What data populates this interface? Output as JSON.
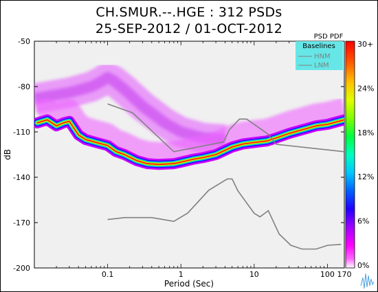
{
  "header": {
    "title_line1": "CH.SMUR.--.HGE : 312 PSDs",
    "title_line2": "25-SEP-2012 / 01-OCT-2012"
  },
  "colors": {
    "plot_background": "#f0f0f0",
    "baseline_line": "#808080",
    "legend_box": "#66e6e6",
    "pdf_scale": [
      "#ff00ff",
      "#cc33ff",
      "#7a00ff",
      "#0000ff",
      "#0080ff",
      "#00d8ff",
      "#00ffb0",
      "#00ff00",
      "#b0ff00",
      "#ffff00",
      "#ffb000",
      "#ff6000",
      "#ff0000"
    ]
  },
  "chart_data": {
    "type": "heatmap",
    "title": "CH.SMUR.--.HGE : 312 PSDs",
    "subtitle": "25-SEP-2012 / 01-OCT-2012",
    "xlabel": "Period (Sec)",
    "ylabel": "dB",
    "x_scale": "log",
    "xlim": [
      0.01,
      170
    ],
    "ylim": [
      -200,
      -50
    ],
    "x_ticks": [
      {
        "value": 0.1,
        "label": "0.1"
      },
      {
        "value": 1,
        "label": "1"
      },
      {
        "value": 10,
        "label": "10"
      },
      {
        "value": 100,
        "label": "100"
      },
      {
        "value": 170,
        "label": "170"
      }
    ],
    "y_ticks": [
      -50,
      -80,
      -110,
      -140,
      -170,
      -200
    ],
    "colorbar": {
      "title": "PSD PDF",
      "ticks": [
        "30+",
        "24%",
        "18%",
        "12%",
        "6%",
        "0%"
      ]
    },
    "legend": {
      "title": "Baselines",
      "placement": "top-right",
      "entries": [
        "HNM",
        "LNM"
      ]
    },
    "baselines": [
      {
        "name": "HNM",
        "x": [
          0.1,
          0.22,
          0.8,
          3.8,
          4.6,
          6.3,
          7.9,
          15.4,
          20,
          354.8
        ],
        "y": [
          -91.5,
          -97.4,
          -123.1,
          -116.7,
          -108.5,
          -101.5,
          -101.5,
          -111.4,
          -118.2,
          -124.8
        ]
      },
      {
        "name": "LNM",
        "x": [
          0.1,
          0.17,
          0.4,
          0.8,
          1.24,
          2.4,
          4.3,
          5,
          6,
          10,
          12,
          15.6,
          21.9,
          31.6,
          45,
          70,
          101,
          154
        ],
        "y": [
          -168,
          -166.7,
          -166.7,
          -169.2,
          -163.7,
          -148.6,
          -141.1,
          -141.1,
          -149,
          -163.8,
          -166.2,
          -162.1,
          -177.5,
          -185,
          -187.5,
          -187.5,
          -185,
          -184.4
        ]
      }
    ],
    "pdf_ridge": {
      "x": [
        0.011,
        0.015,
        0.02,
        0.025,
        0.03,
        0.04,
        0.05,
        0.07,
        0.1,
        0.13,
        0.17,
        0.25,
        0.35,
        0.5,
        0.8,
        1,
        1.5,
        2,
        3,
        5,
        7,
        10,
        15,
        20,
        30,
        50,
        70,
        100,
        170
      ],
      "y": [
        -104,
        -102,
        -106,
        -104,
        -103,
        -112,
        -115,
        -117,
        -119,
        -123,
        -125,
        -129,
        -131,
        -131.5,
        -131,
        -130,
        -128,
        -127,
        -125,
        -120,
        -118,
        -117,
        -116,
        -114,
        -111,
        -108,
        -106,
        -105,
        -102
      ]
    },
    "pdf_upper_cloud": {
      "x": [
        0.01,
        0.03,
        0.06,
        0.08,
        0.1,
        0.12,
        0.17,
        0.3,
        0.6,
        1,
        2,
        4
      ],
      "y": [
        -88,
        -84,
        -80,
        -77,
        -74,
        -76,
        -82,
        -93,
        -104,
        -110,
        -114,
        -115
      ]
    }
  }
}
